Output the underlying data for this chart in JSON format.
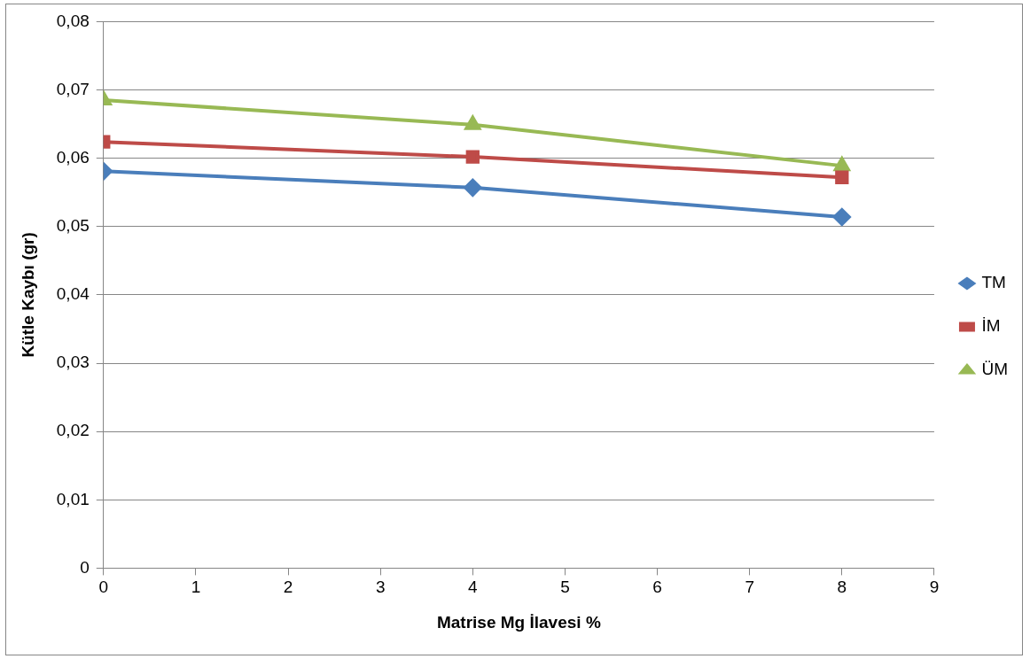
{
  "chart_data": {
    "type": "line",
    "xlabel": "Matrise Mg İlavesi %",
    "ylabel": "Kütle Kaybı (gr)",
    "x": [
      0,
      4,
      8
    ],
    "series": [
      {
        "name": "TM",
        "color": "#4a7ebb",
        "marker": "diamond",
        "values": [
          0.0581,
          0.0557,
          0.0514
        ]
      },
      {
        "name": "İM",
        "color": "#be4b48",
        "marker": "square",
        "values": [
          0.0624,
          0.0602,
          0.0572
        ]
      },
      {
        "name": "ÜM",
        "color": "#98b954",
        "marker": "triangle",
        "values": [
          0.0685,
          0.0649,
          0.0589
        ]
      }
    ],
    "xlim": [
      0,
      9
    ],
    "xticks": [
      0,
      1,
      2,
      3,
      4,
      5,
      6,
      7,
      8,
      9
    ],
    "ylim": [
      0,
      0.08
    ],
    "yticks": [
      0,
      {
        "value": 0.01,
        "label": "0,01"
      },
      {
        "value": 0.02,
        "label": "0,02"
      },
      {
        "value": 0.03,
        "label": "0,03"
      },
      {
        "value": 0.04,
        "label": "0,04"
      },
      {
        "value": 0.05,
        "label": "0,05"
      },
      {
        "value": 0.06,
        "label": "0,06"
      },
      {
        "value": 0.07,
        "label": "0,07"
      },
      {
        "value": 0.08,
        "label": "0,08"
      }
    ],
    "grid": "y",
    "legend": "right",
    "line_style": "solid"
  }
}
